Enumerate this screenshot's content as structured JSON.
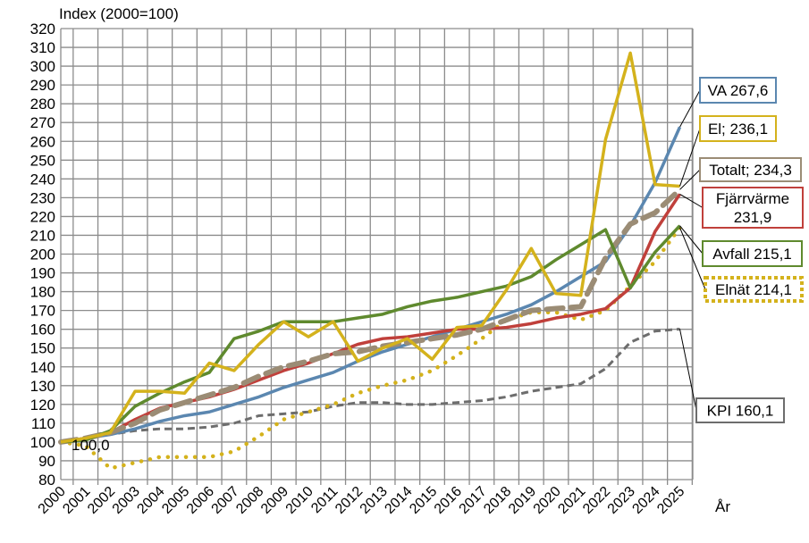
{
  "chart_data": {
    "type": "line",
    "title": "Index (2000=100)",
    "xlabel": "År",
    "ylabel": "Index (2000=100)",
    "ylim": [
      80,
      320
    ],
    "ytick_step": 10,
    "grid": true,
    "x": [
      2000,
      2001,
      2002,
      2003,
      2004,
      2005,
      2006,
      2007,
      2008,
      2009,
      2010,
      2011,
      2012,
      2013,
      2014,
      2015,
      2016,
      2017,
      2018,
      2019,
      2020,
      2021,
      2022,
      2023,
      2024,
      2025
    ],
    "start_label": "100,0",
    "series": [
      {
        "name": "VA",
        "end_label": "VA 267,6",
        "color": "#5b87b0",
        "style": "solid",
        "values": [
          100,
          102,
          104,
          107,
          111,
          114,
          116,
          120,
          124,
          129,
          133,
          137,
          143,
          148,
          152,
          156,
          160,
          164,
          168,
          173,
          180,
          188,
          196,
          215,
          238,
          267.6
        ]
      },
      {
        "name": "El",
        "end_label": "El; 236,1",
        "color": "#d4b21c",
        "style": "solid",
        "values": [
          100,
          102,
          105,
          127,
          127,
          126,
          142,
          138,
          152,
          164,
          156,
          164,
          143,
          150,
          155,
          144,
          161,
          162,
          181,
          203,
          179,
          178,
          261,
          307,
          237,
          236.1
        ]
      },
      {
        "name": "Totalt",
        "end_label": "Totalt; 234,3",
        "color": "#9b8c75",
        "style": "dash",
        "values": [
          100,
          102,
          105,
          110,
          117,
          121,
          125,
          129,
          135,
          140,
          143,
          147,
          148,
          151,
          153,
          155,
          157,
          160,
          165,
          170,
          171,
          172,
          198,
          216,
          222,
          234.3
        ]
      },
      {
        "name": "Fjärrvärme",
        "end_label": "Fjärrvärme 231,9",
        "end_label_lines": [
          "Fjärrvärme",
          "231,9"
        ],
        "color": "#c0403b",
        "style": "solid",
        "values": [
          100,
          102,
          105,
          112,
          118,
          121,
          124,
          128,
          133,
          138,
          142,
          147,
          152,
          155,
          156,
          158,
          160,
          160,
          161,
          163,
          166,
          168,
          171,
          182,
          212,
          231.9
        ]
      },
      {
        "name": "Avfall",
        "end_label": "Avfall 215,1",
        "color": "#5f8a2e",
        "style": "solid",
        "values": [
          100,
          101,
          106,
          119,
          126,
          132,
          137,
          155,
          159,
          164,
          164,
          164,
          166,
          168,
          172,
          175,
          177,
          180,
          183,
          188,
          197,
          205,
          213,
          182,
          201,
          215.1
        ]
      },
      {
        "name": "Elnät",
        "end_label": "Elnät 214,1",
        "color": "#d4b21c",
        "style": "dot",
        "values": [
          100,
          98,
          86,
          89,
          92,
          92,
          92,
          95,
          103,
          112,
          116,
          120,
          126,
          130,
          133,
          138,
          146,
          155,
          165,
          169,
          169,
          165,
          170,
          183,
          196,
          214.1
        ]
      },
      {
        "name": "KPI",
        "end_label": "KPI 160,1",
        "color": "#6d6d6d",
        "style": "shortdash",
        "values": [
          100,
          102,
          104,
          106,
          107,
          107,
          108,
          110,
          114,
          115,
          116,
          119,
          121,
          121,
          120,
          120,
          121,
          122,
          124,
          127,
          129,
          131,
          139,
          153,
          159,
          160.1
        ]
      }
    ]
  }
}
